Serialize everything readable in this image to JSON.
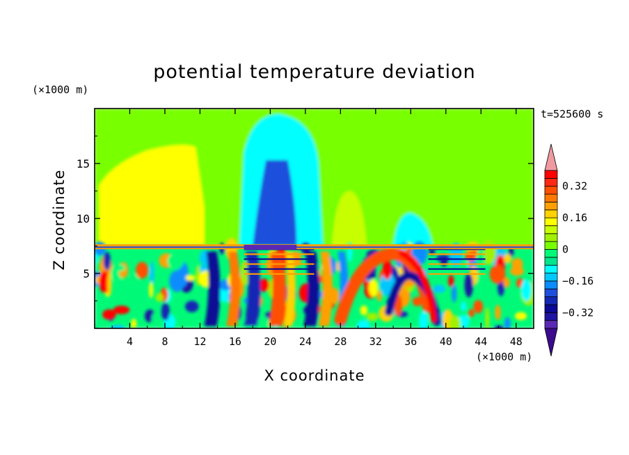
{
  "chart_data": {
    "type": "heatmap",
    "title": "potential temperature deviation",
    "xlabel": "X coordinate",
    "ylabel": "Z coordinate",
    "x_unit": "(×1000 m)",
    "y_unit": "(×1000 m)",
    "time_label": "t=525600 s",
    "xlim": [
      0,
      50
    ],
    "ylim": [
      0,
      20
    ],
    "x_ticks": [
      4,
      8,
      12,
      16,
      20,
      24,
      28,
      32,
      36,
      40,
      44,
      48
    ],
    "y_ticks": [
      5,
      10,
      15
    ],
    "colorbar": {
      "levels": [
        -0.44,
        -0.4,
        -0.36,
        -0.32,
        -0.28,
        -0.24,
        -0.2,
        -0.16,
        -0.12,
        -0.08,
        -0.04,
        0,
        0.04,
        0.08,
        0.12,
        0.16,
        0.2,
        0.24,
        0.28,
        0.32,
        0.36,
        0.4
      ],
      "colors": [
        "#3c0a8c",
        "#5a28b4",
        "#1e14a0",
        "#0a0a96",
        "#1428b4",
        "#1e50dc",
        "#0a8cff",
        "#00c8ff",
        "#00ffff",
        "#00e68c",
        "#00fa78",
        "#78ff00",
        "#a0f000",
        "#c8ff00",
        "#ffff00",
        "#ffd200",
        "#ffa000",
        "#ff7800",
        "#ff5000",
        "#ff2814",
        "#ff0000",
        "#f09aa0"
      ],
      "tick_values": [
        -0.32,
        -0.16,
        0,
        0.16,
        0.32
      ],
      "tick_labels": [
        "−0.32",
        "−0.16",
        "0",
        "0.16",
        "0.32"
      ],
      "extend": "both"
    },
    "field_regions": [
      {
        "name": "upper-green",
        "value": 0.02,
        "x": [
          0,
          50
        ],
        "z": [
          7.5,
          20
        ]
      },
      {
        "name": "upper-left-yellow",
        "value": 0.14,
        "x": [
          0.5,
          12.5
        ],
        "z": [
          7.6,
          17
        ]
      },
      {
        "name": "upper-cyan-column",
        "value": -0.1,
        "x": [
          16.5,
          25.5
        ],
        "z": [
          7.5,
          19.5
        ]
      },
      {
        "name": "upper-blue-column",
        "value": -0.24,
        "x": [
          18,
          23
        ],
        "z": [
          7.5,
          15.3
        ]
      },
      {
        "name": "upper-right-yellow",
        "value": 0.1,
        "x": [
          27,
          31
        ],
        "z": [
          7.5,
          12.5
        ]
      },
      {
        "name": "right-cyan-patch",
        "value": -0.12,
        "x": [
          34,
          38.5
        ],
        "z": [
          7.5,
          10.5
        ]
      },
      {
        "name": "lower-turbulent",
        "value": -0.04,
        "x": [
          0,
          50
        ],
        "z": [
          0,
          7.5
        ]
      },
      {
        "name": "red-band-1",
        "value": 0.24,
        "x": [
          19,
          22
        ],
        "z": [
          0,
          7
        ]
      },
      {
        "name": "blue-band-1",
        "value": -0.28,
        "x": [
          23,
          25
        ],
        "z": [
          0,
          7
        ]
      },
      {
        "name": "red-arc",
        "value": 0.28,
        "x": [
          27,
          37
        ],
        "z": [
          0.5,
          7
        ]
      },
      {
        "name": "pink-arc",
        "value": 0.38,
        "x": [
          34,
          39
        ],
        "z": [
          0.5,
          7
        ]
      },
      {
        "name": "blue-arc",
        "value": -0.3,
        "x": [
          33,
          40
        ],
        "z": [
          0.5,
          7
        ]
      }
    ]
  }
}
